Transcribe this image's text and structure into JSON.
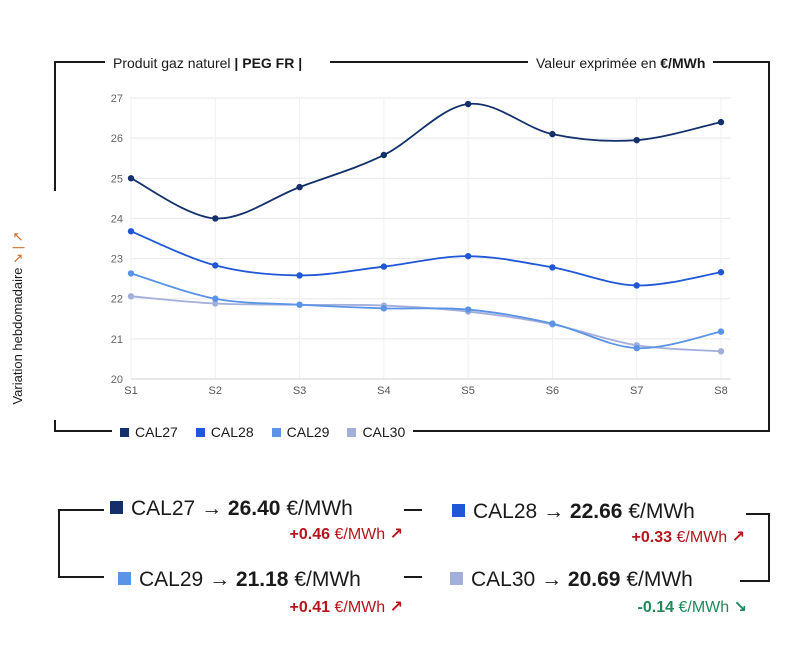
{
  "header": {
    "product_prefix": "Produit gaz naturel",
    "product_code": "| PEG FR |",
    "unit_prefix": "Valeur exprimée en",
    "unit": "€/MWh"
  },
  "y_axis_label": "Variation hebdomadaire",
  "y_axis_label_suffix": "↘ | ↗",
  "chart_data": {
    "type": "line",
    "title": "Produit gaz naturel | PEG FR |",
    "xlabel": "",
    "ylabel": "Variation hebdomadaire",
    "categories": [
      "S1",
      "S2",
      "S3",
      "S4",
      "S5",
      "S6",
      "S7",
      "S8"
    ],
    "ylim": [
      20,
      27
    ],
    "yticks": [
      20,
      21,
      22,
      23,
      24,
      25,
      26,
      27
    ],
    "grid": true,
    "legend_position": "bottom-left",
    "series": [
      {
        "name": "CAL27",
        "color": "#13306b",
        "values": [
          25.0,
          24.0,
          24.78,
          25.58,
          26.85,
          26.1,
          25.95,
          26.4
        ]
      },
      {
        "name": "CAL28",
        "color": "#1f57d6",
        "values": [
          23.68,
          22.83,
          22.58,
          22.8,
          23.06,
          22.78,
          22.33,
          22.66
        ]
      },
      {
        "name": "CAL29",
        "color": "#5b94e6",
        "values": [
          22.63,
          22.0,
          21.85,
          21.76,
          21.73,
          21.38,
          20.77,
          21.18
        ]
      },
      {
        "name": "CAL30",
        "color": "#a3aedb",
        "values": [
          22.06,
          21.88,
          21.85,
          21.83,
          21.68,
          21.36,
          20.84,
          20.69
        ]
      }
    ]
  },
  "summary": [
    {
      "name": "CAL27",
      "arrow": "→",
      "value": "26.40",
      "unit": "€/MWh",
      "delta": "+0.46",
      "delta_unit": "€/MWh",
      "delta_icon": "↗",
      "direction": "up",
      "color": "#13306b"
    },
    {
      "name": "CAL28",
      "arrow": "→",
      "value": "22.66",
      "unit": "€/MWh",
      "delta": "+0.33",
      "delta_unit": "€/MWh",
      "delta_icon": "↗",
      "direction": "up",
      "color": "#1f57d6"
    },
    {
      "name": "CAL29",
      "arrow": "→",
      "value": "21.18",
      "unit": "€/MWh",
      "delta": "+0.41",
      "delta_unit": "€/MWh",
      "delta_icon": "↗",
      "direction": "up",
      "color": "#5b94e6"
    },
    {
      "name": "CAL30",
      "arrow": "→",
      "value": "20.69",
      "unit": "€/MWh",
      "delta": "-0.14",
      "delta_unit": "€/MWh",
      "delta_icon": "↘",
      "direction": "down",
      "color": "#a3aedb"
    }
  ]
}
